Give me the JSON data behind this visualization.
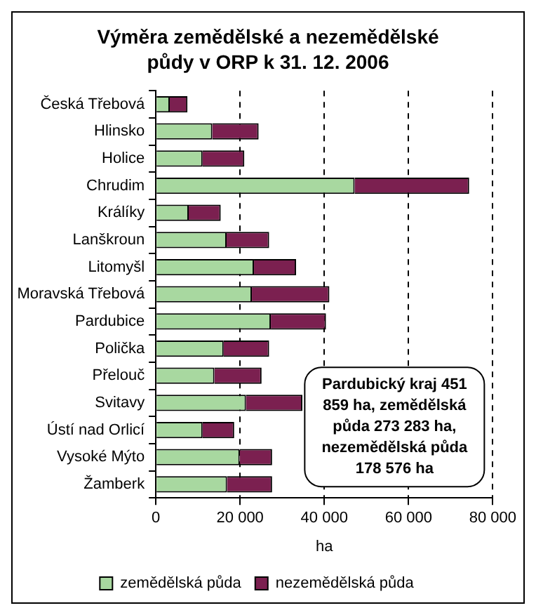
{
  "chart_data": {
    "type": "bar",
    "orientation": "horizontal",
    "stacked": true,
    "title": "Výměra zemědělské a nezemědělské půdy v ORP k 31. 12. 2006",
    "categories": [
      "Česká Třebová",
      "Hlinsko",
      "Holice",
      "Chrudim",
      "Králíky",
      "Lanškroun",
      "Litomyšl",
      "Moravská Třebová",
      "Pardubice",
      "Polička",
      "Přelouč",
      "Svitavy",
      "Ústí nad Orlicí",
      "Vysoké Mýto",
      "Žamberk"
    ],
    "series": [
      {
        "name": "zemědělská půda",
        "color": "#a8d8a0",
        "values": [
          3300,
          13400,
          11100,
          47200,
          7800,
          16800,
          23300,
          22800,
          27300,
          16100,
          13900,
          21400,
          11100,
          19900,
          16900
        ]
      },
      {
        "name": "nezemědělská půda",
        "color": "#7b2050",
        "values": [
          4200,
          11000,
          9900,
          27200,
          7600,
          10100,
          10000,
          18400,
          13100,
          10800,
          11200,
          13400,
          7500,
          7700,
          10700
        ]
      }
    ],
    "xlabel": "ha",
    "xlim": [
      0,
      80000
    ],
    "xticks": [
      {
        "value": 0,
        "label": "0"
      },
      {
        "value": 20000,
        "label": "20 000"
      },
      {
        "value": 40000,
        "label": "40 000"
      },
      {
        "value": 60000,
        "label": "60 000"
      },
      {
        "value": 80000,
        "label": "80 000"
      }
    ],
    "grid": "x",
    "legend": "bottom",
    "annotations": [
      "Pardubický kraj 451 859 ha, zemědělská půda 273 283 ha, nezemědělská půda 178 576 ha"
    ]
  }
}
